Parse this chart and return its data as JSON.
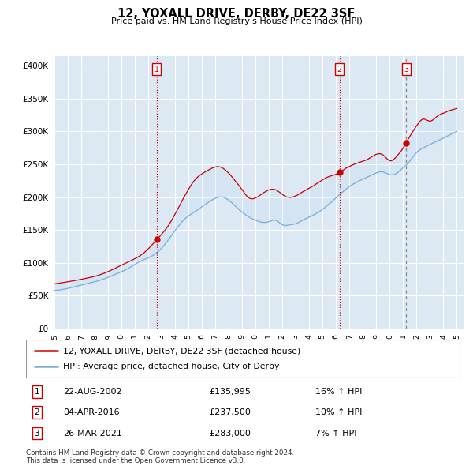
{
  "title": "12, YOXALL DRIVE, DERBY, DE22 3SF",
  "subtitle": "Price paid vs. HM Land Registry's House Price Index (HPI)",
  "ytick_values": [
    0,
    50000,
    100000,
    150000,
    200000,
    250000,
    300000,
    350000,
    400000
  ],
  "ylim": [
    0,
    415000
  ],
  "xlim_start": 1995.0,
  "xlim_end": 2025.5,
  "red_line_color": "#cc0000",
  "blue_line_color": "#7aaed6",
  "grid_color": "#cccccc",
  "bg_color": "#ffffff",
  "chart_bg_color": "#dce9f5",
  "legend_label_red": "12, YOXALL DRIVE, DERBY, DE22 3SF (detached house)",
  "legend_label_blue": "HPI: Average price, detached house, City of Derby",
  "transactions": [
    {
      "label": "1",
      "date": "22-AUG-2002",
      "price": 135995,
      "hpi_pct": "16%",
      "year": 2002.63,
      "price_val": 135995
    },
    {
      "label": "2",
      "date": "04-APR-2016",
      "price": 237500,
      "hpi_pct": "10%",
      "year": 2016.26,
      "price_val": 237500
    },
    {
      "label": "3",
      "date": "26-MAR-2021",
      "price": 283000,
      "hpi_pct": "7%",
      "year": 2021.23,
      "price_val": 283000
    }
  ],
  "footer": "Contains HM Land Registry data © Crown copyright and database right 2024.\nThis data is licensed under the Open Government Licence v3.0."
}
